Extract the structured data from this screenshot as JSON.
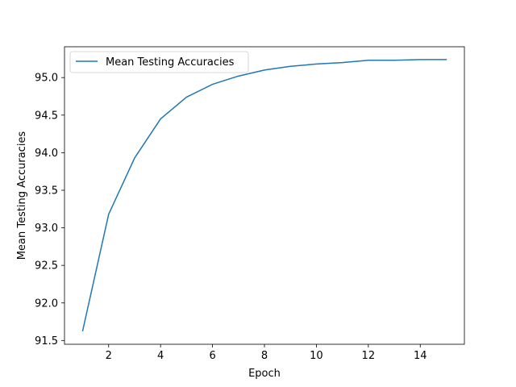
{
  "chart_data": {
    "type": "line",
    "title": "",
    "xlabel": "Epoch",
    "ylabel": "Mean Testing Accuracies",
    "xlim": [
      0.3,
      15.7
    ],
    "ylim": [
      91.45,
      95.41
    ],
    "x_ticks": [
      2,
      4,
      6,
      8,
      10,
      12,
      14
    ],
    "x_tick_labels": [
      "2",
      "4",
      "6",
      "8",
      "10",
      "12",
      "14"
    ],
    "y_ticks": [
      91.5,
      92.0,
      92.5,
      93.0,
      93.5,
      94.0,
      94.5,
      95.0
    ],
    "y_tick_labels": [
      "91.5",
      "92.0",
      "92.5",
      "93.0",
      "93.5",
      "94.0",
      "94.5",
      "95.0"
    ],
    "grid": false,
    "legend_position": "upper-left",
    "series": [
      {
        "name": "Mean Testing Accuracies",
        "color": "#1f77b4",
        "x": [
          1,
          2,
          3,
          4,
          5,
          6,
          7,
          8,
          9,
          10,
          11,
          12,
          13,
          14,
          15
        ],
        "y": [
          91.63,
          93.18,
          93.93,
          94.45,
          94.74,
          94.91,
          95.02,
          95.1,
          95.15,
          95.18,
          95.2,
          95.23,
          95.23,
          95.24,
          95.24
        ]
      }
    ]
  }
}
